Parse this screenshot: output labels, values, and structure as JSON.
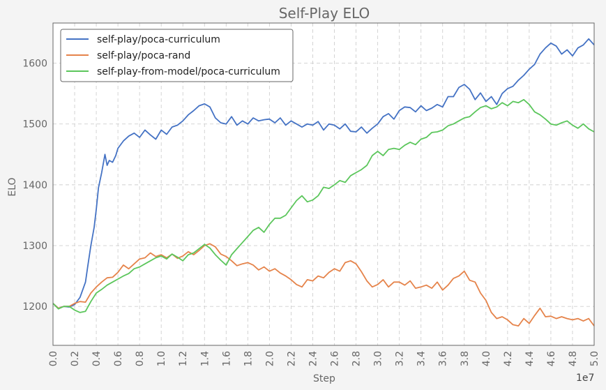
{
  "chart_data": {
    "type": "line",
    "title": "Self-Play ELO",
    "xlabel": "Step",
    "ylabel": "ELO",
    "x_offset_label": "1e7",
    "xlim": [
      0.0,
      5.0
    ],
    "ylim": [
      1136,
      1666
    ],
    "x_ticks": [
      0.0,
      0.2,
      0.4,
      0.6,
      0.8,
      1.0,
      1.2,
      1.4,
      1.6,
      1.8,
      2.0,
      2.2,
      2.4,
      2.6,
      2.8,
      3.0,
      3.2,
      3.4,
      3.6,
      3.8,
      4.0,
      4.2,
      4.4,
      4.6,
      4.8,
      5.0
    ],
    "x_tick_labels": [
      "0.0",
      "0.2",
      "0.4",
      "0.6",
      "0.8",
      "1.0",
      "1.2",
      "1.4",
      "1.6",
      "1.8",
      "2.0",
      "2.2",
      "2.4",
      "2.6",
      "2.8",
      "3.0",
      "3.2",
      "3.4",
      "3.6",
      "3.8",
      "4.0",
      "4.2",
      "4.4",
      "4.6",
      "4.8",
      "5.0"
    ],
    "y_ticks": [
      1200,
      1300,
      1400,
      1500,
      1600
    ],
    "y_tick_labels": [
      "1200",
      "1300",
      "1400",
      "1500",
      "1600"
    ],
    "grid": true,
    "legend_position": "top-left",
    "series": [
      {
        "name": "self-play/poca-curriculum",
        "color": "#4472c4",
        "x": [
          0.0,
          0.05,
          0.1,
          0.15,
          0.2,
          0.25,
          0.3,
          0.32,
          0.35,
          0.38,
          0.4,
          0.42,
          0.45,
          0.48,
          0.5,
          0.52,
          0.55,
          0.58,
          0.6,
          0.65,
          0.7,
          0.75,
          0.8,
          0.85,
          0.9,
          0.95,
          1.0,
          1.05,
          1.1,
          1.15,
          1.2,
          1.25,
          1.3,
          1.35,
          1.4,
          1.45,
          1.5,
          1.55,
          1.6,
          1.65,
          1.7,
          1.75,
          1.8,
          1.85,
          1.9,
          1.95,
          2.0,
          2.05,
          2.1,
          2.15,
          2.2,
          2.25,
          2.3,
          2.35,
          2.4,
          2.45,
          2.5,
          2.55,
          2.6,
          2.65,
          2.7,
          2.75,
          2.8,
          2.85,
          2.9,
          2.95,
          3.0,
          3.05,
          3.1,
          3.15,
          3.2,
          3.25,
          3.3,
          3.35,
          3.4,
          3.45,
          3.5,
          3.55,
          3.6,
          3.65,
          3.7,
          3.75,
          3.8,
          3.85,
          3.9,
          3.95,
          4.0,
          4.05,
          4.1,
          4.15,
          4.2,
          4.25,
          4.3,
          4.35,
          4.4,
          4.45,
          4.5,
          4.55,
          4.6,
          4.65,
          4.7,
          4.75,
          4.8,
          4.85,
          4.9,
          4.95,
          5.0
        ],
        "y": [
          1205,
          1197,
          1200,
          1199,
          1203,
          1215,
          1240,
          1265,
          1300,
          1330,
          1360,
          1395,
          1420,
          1450,
          1432,
          1440,
          1437,
          1448,
          1460,
          1472,
          1480,
          1485,
          1478,
          1490,
          1482,
          1475,
          1490,
          1483,
          1495,
          1498,
          1505,
          1515,
          1522,
          1530,
          1533,
          1528,
          1510,
          1502,
          1500,
          1512,
          1498,
          1505,
          1500,
          1510,
          1505,
          1507,
          1508,
          1502,
          1510,
          1498,
          1505,
          1500,
          1495,
          1500,
          1498,
          1504,
          1490,
          1500,
          1498,
          1492,
          1500,
          1488,
          1487,
          1495,
          1485,
          1493,
          1500,
          1512,
          1517,
          1508,
          1522,
          1528,
          1527,
          1520,
          1530,
          1522,
          1526,
          1532,
          1528,
          1545,
          1545,
          1560,
          1565,
          1557,
          1540,
          1551,
          1537,
          1545,
          1532,
          1550,
          1558,
          1562,
          1572,
          1580,
          1590,
          1598,
          1615,
          1625,
          1633,
          1628,
          1615,
          1622,
          1612,
          1625,
          1630,
          1640,
          1630
        ]
      },
      {
        "name": "self-play/poca-rand",
        "color": "#e5834a",
        "x": [
          0.0,
          0.05,
          0.1,
          0.15,
          0.2,
          0.25,
          0.3,
          0.35,
          0.4,
          0.45,
          0.5,
          0.55,
          0.6,
          0.65,
          0.7,
          0.75,
          0.8,
          0.85,
          0.9,
          0.95,
          1.0,
          1.05,
          1.1,
          1.15,
          1.2,
          1.25,
          1.3,
          1.35,
          1.4,
          1.45,
          1.5,
          1.55,
          1.6,
          1.65,
          1.7,
          1.75,
          1.8,
          1.85,
          1.9,
          1.95,
          2.0,
          2.05,
          2.1,
          2.15,
          2.2,
          2.25,
          2.3,
          2.35,
          2.4,
          2.45,
          2.5,
          2.55,
          2.6,
          2.65,
          2.7,
          2.75,
          2.8,
          2.85,
          2.9,
          2.95,
          3.0,
          3.05,
          3.1,
          3.15,
          3.2,
          3.25,
          3.3,
          3.35,
          3.4,
          3.45,
          3.5,
          3.55,
          3.6,
          3.65,
          3.7,
          3.75,
          3.8,
          3.85,
          3.9,
          3.95,
          4.0,
          4.05,
          4.1,
          4.15,
          4.2,
          4.25,
          4.3,
          4.35,
          4.4,
          4.45,
          4.5,
          4.55,
          4.6,
          4.65,
          4.7,
          4.75,
          4.8,
          4.85,
          4.9,
          4.95,
          5.0
        ],
        "y": [
          1205,
          1197,
          1200,
          1200,
          1205,
          1208,
          1207,
          1222,
          1232,
          1240,
          1247,
          1248,
          1256,
          1268,
          1262,
          1270,
          1278,
          1280,
          1288,
          1282,
          1285,
          1280,
          1286,
          1279,
          1283,
          1290,
          1285,
          1292,
          1300,
          1303,
          1298,
          1286,
          1282,
          1275,
          1267,
          1270,
          1272,
          1268,
          1260,
          1265,
          1258,
          1262,
          1255,
          1250,
          1244,
          1236,
          1232,
          1244,
          1242,
          1250,
          1247,
          1256,
          1262,
          1258,
          1272,
          1275,
          1270,
          1257,
          1242,
          1232,
          1236,
          1244,
          1232,
          1240,
          1240,
          1235,
          1242,
          1230,
          1232,
          1235,
          1230,
          1240,
          1227,
          1235,
          1246,
          1250,
          1258,
          1243,
          1240,
          1222,
          1210,
          1190,
          1180,
          1183,
          1178,
          1170,
          1168,
          1180,
          1172,
          1185,
          1197,
          1183,
          1184,
          1180,
          1183,
          1180,
          1178,
          1180,
          1176,
          1180,
          1168
        ]
      },
      {
        "name": "self-play-from-model/poca-curriculum",
        "color": "#5bc65b",
        "x": [
          0.0,
          0.05,
          0.1,
          0.15,
          0.2,
          0.25,
          0.3,
          0.35,
          0.4,
          0.45,
          0.5,
          0.55,
          0.6,
          0.65,
          0.7,
          0.75,
          0.8,
          0.85,
          0.9,
          0.95,
          1.0,
          1.05,
          1.1,
          1.15,
          1.2,
          1.25,
          1.3,
          1.35,
          1.4,
          1.45,
          1.5,
          1.55,
          1.6,
          1.65,
          1.7,
          1.75,
          1.8,
          1.85,
          1.9,
          1.95,
          2.0,
          2.05,
          2.1,
          2.15,
          2.2,
          2.25,
          2.3,
          2.35,
          2.4,
          2.45,
          2.5,
          2.55,
          2.6,
          2.65,
          2.7,
          2.75,
          2.8,
          2.85,
          2.9,
          2.95,
          3.0,
          3.05,
          3.1,
          3.15,
          3.2,
          3.25,
          3.3,
          3.35,
          3.4,
          3.45,
          3.5,
          3.55,
          3.6,
          3.65,
          3.7,
          3.75,
          3.8,
          3.85,
          3.9,
          3.95,
          4.0,
          4.05,
          4.1,
          4.15,
          4.2,
          4.25,
          4.3,
          4.35,
          4.4,
          4.45,
          4.5,
          4.55,
          4.6,
          4.65,
          4.7,
          4.75,
          4.8,
          4.85,
          4.9,
          4.95,
          5.0
        ],
        "y": [
          1205,
          1196,
          1200,
          1200,
          1194,
          1190,
          1192,
          1208,
          1222,
          1228,
          1235,
          1240,
          1245,
          1250,
          1254,
          1262,
          1265,
          1270,
          1275,
          1280,
          1283,
          1278,
          1286,
          1281,
          1275,
          1285,
          1288,
          1295,
          1302,
          1296,
          1285,
          1276,
          1268,
          1285,
          1295,
          1305,
          1315,
          1325,
          1330,
          1322,
          1335,
          1345,
          1345,
          1350,
          1362,
          1374,
          1382,
          1372,
          1375,
          1382,
          1396,
          1394,
          1400,
          1407,
          1404,
          1415,
          1420,
          1425,
          1432,
          1448,
          1455,
          1448,
          1458,
          1460,
          1458,
          1465,
          1470,
          1466,
          1475,
          1478,
          1486,
          1487,
          1490,
          1497,
          1500,
          1505,
          1510,
          1512,
          1520,
          1527,
          1530,
          1525,
          1528,
          1535,
          1530,
          1537,
          1535,
          1540,
          1532,
          1520,
          1515,
          1508,
          1500,
          1498,
          1502,
          1505,
          1498,
          1493,
          1500,
          1492,
          1487
        ]
      }
    ]
  }
}
